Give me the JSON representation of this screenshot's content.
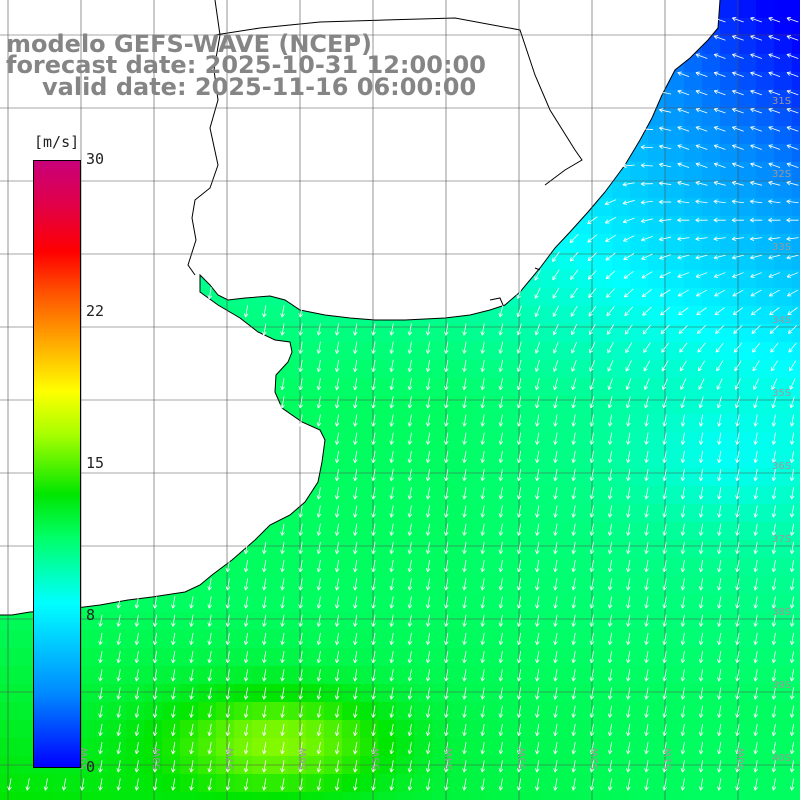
{
  "title": {
    "line1": "modelo GEFS-WAVE (NCEP)",
    "line2": "forecast date: 2025-10-31 12:00:00",
    "line3": "valid date: 2025-11-16 06:00:00"
  },
  "colorbar": {
    "units": "[m/s]",
    "ticks": [
      "30",
      "22",
      "15",
      "8",
      "0"
    ],
    "tick_values": [
      30,
      22,
      15,
      8,
      0
    ],
    "min": 0,
    "max": 30,
    "colors": [
      "#0000ff",
      "#0088ff",
      "#00ffff",
      "#00ff66",
      "#00e600",
      "#aaff00",
      "#ffff00",
      "#ffaa00",
      "#ff5500",
      "#ff0000",
      "#e0004a",
      "#c8007a"
    ]
  },
  "map": {
    "lon_labels": [
      "59W",
      "58W",
      "57W",
      "56W",
      "55W",
      "54W",
      "53W",
      "52W",
      "51W",
      "50W",
      "49W"
    ],
    "lat_labels": [
      "31S",
      "32S",
      "33S",
      "34S",
      "35S",
      "36S",
      "37S",
      "38S",
      "39S",
      "40S",
      "41S"
    ],
    "land_color": "#ffffff",
    "coast_color": "#000000",
    "grid_color": "#505050",
    "arrow_color": "#ffffff"
  }
}
